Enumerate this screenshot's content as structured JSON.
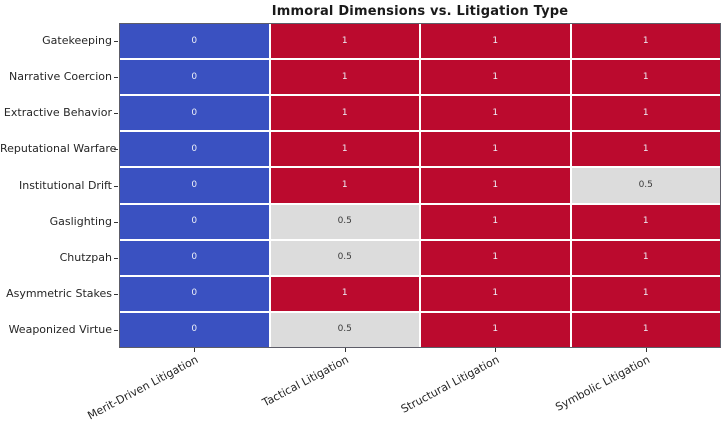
{
  "chart_data": {
    "type": "heatmap",
    "title": "Immoral Dimensions vs. Litigation Type",
    "rows": [
      "Gatekeeping",
      "Narrative Coercion",
      "Extractive Behavior",
      "Reputational Warfare",
      "Institutional Drift",
      "Gaslighting",
      "Chutzpah",
      "Asymmetric Stakes",
      "Weaponized Virtue"
    ],
    "columns": [
      "Merit-Driven Litigation",
      "Tactical Litigation",
      "Structural Litigation",
      "Symbolic Litigation"
    ],
    "values": [
      [
        0,
        1,
        1,
        1
      ],
      [
        0,
        1,
        1,
        1
      ],
      [
        0,
        1,
        1,
        1
      ],
      [
        0,
        1,
        1,
        1
      ],
      [
        0,
        1,
        1,
        0.5
      ],
      [
        0,
        0.5,
        1,
        1
      ],
      [
        0,
        0.5,
        1,
        1
      ],
      [
        0,
        1,
        1,
        1
      ],
      [
        0,
        0.5,
        1,
        1
      ]
    ],
    "value_colors": {
      "0": "#3a51c1",
      "0.5": "#dcdcdc",
      "1": "#bb0a2e"
    },
    "cell_text_light": "#eef0f8",
    "cell_text_dark": "#3a3a3a",
    "cell_border_color": "#ffffff",
    "legend": "none",
    "xlabel": "",
    "ylabel": ""
  }
}
